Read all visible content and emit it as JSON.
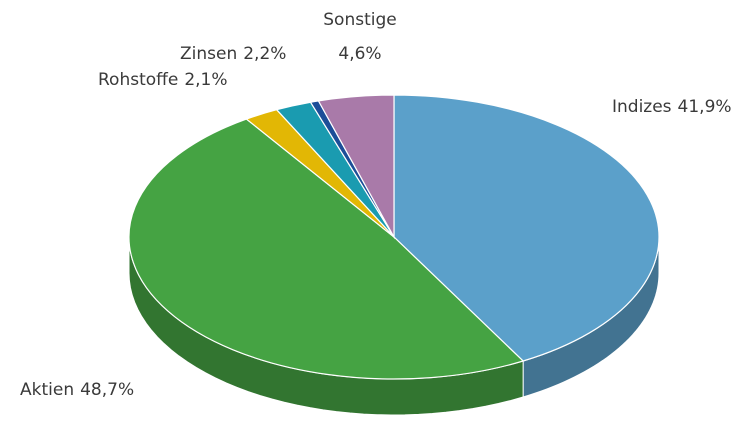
{
  "chart_data": {
    "type": "pie3d",
    "categories": [
      "Indizes",
      "Aktien",
      "Rohstoffe",
      "Zinsen",
      null,
      "Sonstige"
    ],
    "values": [
      41.9,
      48.7,
      2.1,
      2.2,
      0.5,
      4.6
    ],
    "value_labels": [
      "41,9%",
      "48,7%",
      "2,1%",
      "2,2%",
      null,
      "4,6%"
    ],
    "colors": [
      "#5ba0ca",
      "#45a343",
      "#e2b705",
      "#1a9bb0",
      "#1c4e98",
      "#a97aa9"
    ]
  }
}
